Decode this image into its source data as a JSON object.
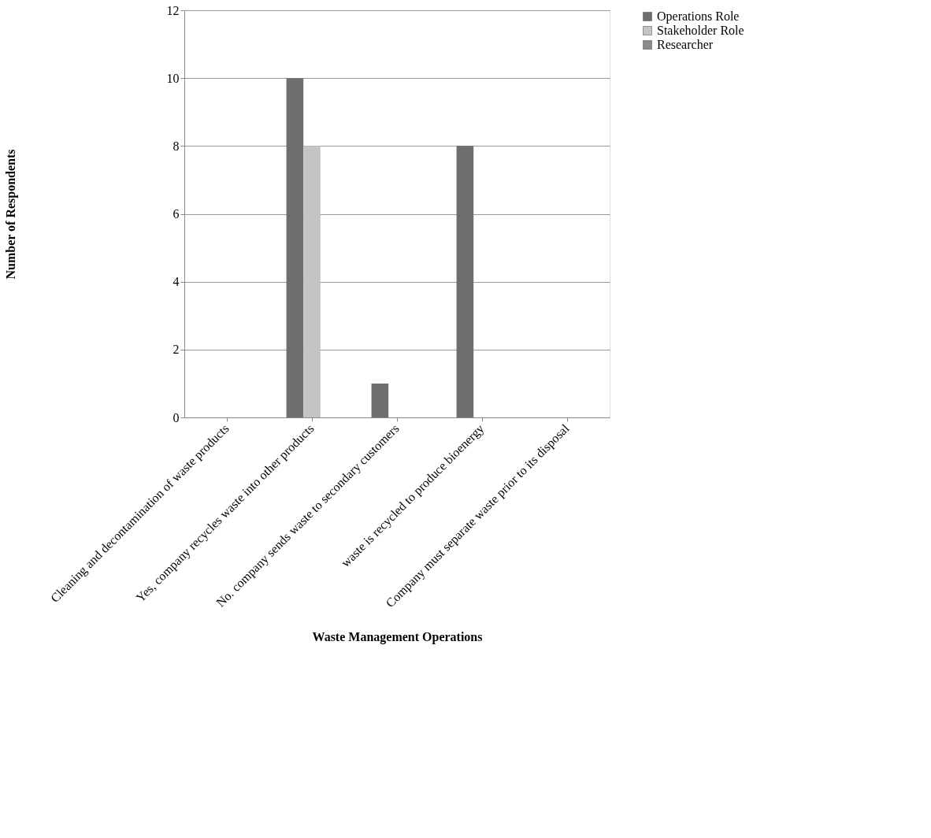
{
  "chart_data": {
    "type": "bar",
    "xlabel": "Waste Management Operations",
    "ylabel": "Number of Respondents",
    "categories": [
      "Cleaning and decontamination of waste products",
      "Yes, company recycles waste into other products",
      "No. company sends waste to secondary customers",
      "waste is recycled to produce bioenergy",
      "Company must separate waste prior to its disposal"
    ],
    "series": [
      {
        "name": "Operations Role",
        "color": "#6e6e6e",
        "values": [
          0,
          10,
          1,
          8,
          0
        ]
      },
      {
        "name": "Stakeholder Role",
        "color": "#c4c4c4",
        "values": [
          0,
          8,
          0,
          0,
          0
        ]
      },
      {
        "name": "Researcher",
        "color": "#8c8c8c",
        "values": [
          0,
          0,
          0,
          0,
          0
        ]
      }
    ],
    "ylim": [
      0,
      12
    ],
    "yticks": [
      0,
      2,
      4,
      6,
      8,
      10,
      12
    ],
    "grid": "y",
    "legend": "right"
  }
}
